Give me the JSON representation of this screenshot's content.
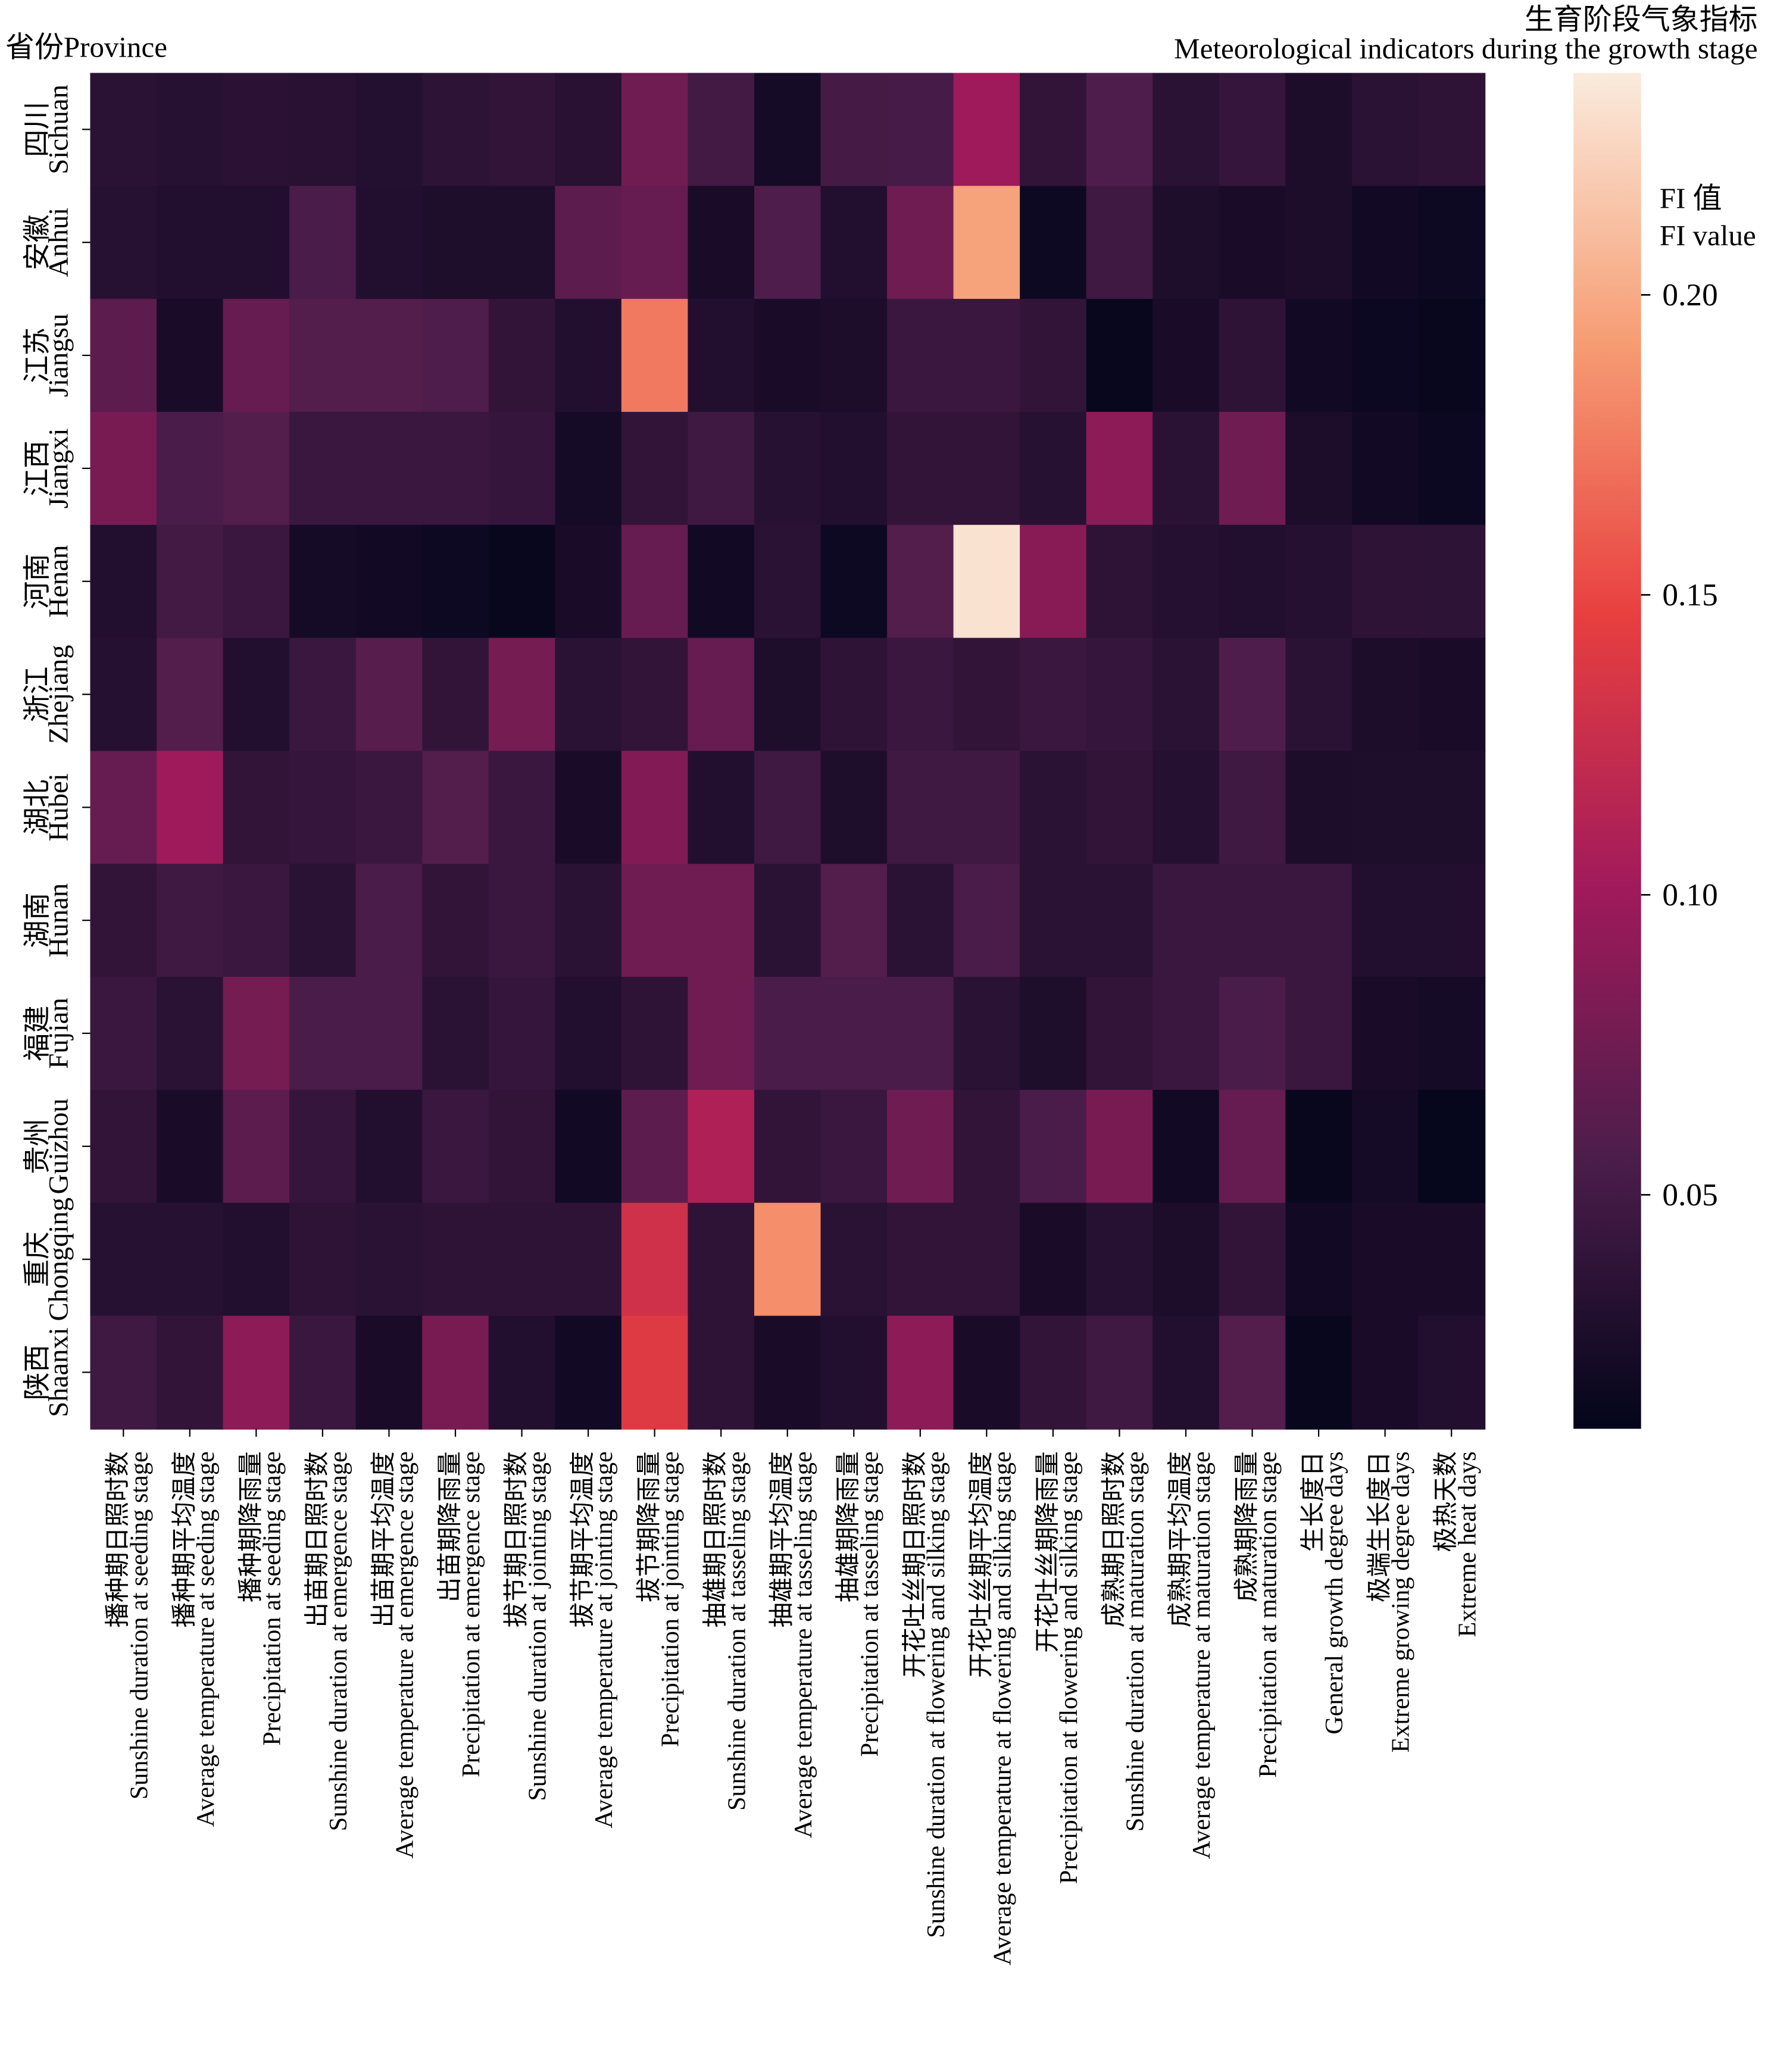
{
  "chart_data": {
    "type": "heatmap",
    "y_axis_label": "省份Province",
    "x_axis_label_zh": "生育阶段气象指标",
    "x_axis_label_en": "Meteorological indicators during the growth stage",
    "colorbar_label_zh": "FI 值",
    "colorbar_label_en": "FI value",
    "colormap": "rocket",
    "clim": [
      0.011,
      0.237
    ],
    "colorbar_ticks": [
      0.05,
      {
        "value": 0.1,
        "label": "0.10"
      },
      0.15,
      {
        "value": 0.2,
        "label": "0.20"
      }
    ],
    "rows_zh": [
      "四川",
      "安徽",
      "江苏",
      "江西",
      "河南",
      "浙江",
      "湖北",
      "湖南",
      "福建",
      "贵州",
      "重庆",
      "陕西"
    ],
    "rows": [
      "Sichuan",
      "Anhui",
      "Jiangsu",
      "Jiangxi",
      "Henan",
      "Zhejiang",
      "Hubei",
      "Hunan",
      "Fujian",
      "Guizhou",
      "Chongqing",
      "Shaanxi"
    ],
    "categories_zh": [
      "播种期日照时数",
      "播种期平均温度",
      "播种期降雨量",
      "出苗期日照时数",
      "出苗期平均温度",
      "出苗期降雨量",
      "拔节期日照时数",
      "拔节期平均温度",
      "拔节期降雨量",
      "抽雄期日照时数",
      "抽雄期平均温度",
      "抽雄期降雨量",
      "开花吐丝期日照时数",
      "开花吐丝期平均温度",
      "开花吐丝期降雨量",
      "成熟期日照时数",
      "成熟期平均温度",
      "成熟期降雨量",
      "生长度日",
      "极端生长度日",
      "极热天数"
    ],
    "categories": [
      "Sunshine duration at seeding stage",
      "Average temperature at seeding stage",
      "Precipitation at seeding stage",
      "Sunshine duration at emergence stage",
      "Average temperature at emergence stage",
      "Precipitation at emergence stage",
      "Sunshine duration at jointing stage",
      "Average temperature at jointing stage",
      "Precipitation at jointing stage",
      "Sunshine duration at tasseling stage",
      "Average temperature at tasseling stage",
      "Precipitation at tasseling stage",
      "Sunshine duration at flowering and silking stage",
      "Average temperature at flowering and silking stage",
      "Precipitation at flowering and silking stage",
      "Sunshine duration at maturation stage",
      "Average temperature at maturation stage",
      "Precipitation at maturation stage",
      "General growth degree days",
      "Extreme growing degree days",
      "Extreme heat days"
    ],
    "values": [
      [
        0.035,
        0.033,
        0.036,
        0.034,
        0.031,
        0.037,
        0.04,
        0.034,
        0.075,
        0.05,
        0.022,
        0.052,
        0.053,
        0.1,
        0.04,
        0.058,
        0.035,
        0.042,
        0.027,
        0.035,
        0.038
      ],
      [
        0.033,
        0.03,
        0.03,
        0.055,
        0.03,
        0.028,
        0.028,
        0.065,
        0.07,
        0.025,
        0.058,
        0.03,
        0.075,
        0.195,
        0.018,
        0.048,
        0.028,
        0.025,
        0.027,
        0.02,
        0.018
      ],
      [
        0.065,
        0.025,
        0.07,
        0.06,
        0.06,
        0.058,
        0.04,
        0.03,
        0.175,
        0.03,
        0.025,
        0.027,
        0.045,
        0.045,
        0.04,
        0.015,
        0.025,
        0.038,
        0.02,
        0.017,
        0.015
      ],
      [
        0.08,
        0.055,
        0.06,
        0.045,
        0.045,
        0.045,
        0.042,
        0.022,
        0.04,
        0.048,
        0.033,
        0.03,
        0.04,
        0.04,
        0.033,
        0.09,
        0.035,
        0.075,
        0.027,
        0.02,
        0.017
      ],
      [
        0.03,
        0.05,
        0.045,
        0.022,
        0.02,
        0.018,
        0.015,
        0.025,
        0.07,
        0.02,
        0.035,
        0.018,
        0.06,
        0.232,
        0.088,
        0.038,
        0.032,
        0.03,
        0.032,
        0.038,
        0.037
      ],
      [
        0.032,
        0.06,
        0.03,
        0.045,
        0.062,
        0.04,
        0.078,
        0.035,
        0.04,
        0.07,
        0.028,
        0.038,
        0.045,
        0.04,
        0.045,
        0.042,
        0.035,
        0.058,
        0.035,
        0.027,
        0.025
      ],
      [
        0.07,
        0.1,
        0.04,
        0.042,
        0.045,
        0.06,
        0.045,
        0.025,
        0.085,
        0.03,
        0.048,
        0.028,
        0.048,
        0.048,
        0.035,
        0.04,
        0.032,
        0.048,
        0.027,
        0.028,
        0.028
      ],
      [
        0.04,
        0.048,
        0.045,
        0.035,
        0.055,
        0.04,
        0.045,
        0.035,
        0.075,
        0.075,
        0.035,
        0.06,
        0.035,
        0.055,
        0.035,
        0.035,
        0.045,
        0.045,
        0.045,
        0.03,
        0.03
      ],
      [
        0.045,
        0.035,
        0.078,
        0.055,
        0.055,
        0.035,
        0.042,
        0.03,
        0.038,
        0.075,
        0.055,
        0.055,
        0.055,
        0.035,
        0.028,
        0.04,
        0.045,
        0.055,
        0.045,
        0.025,
        0.022
      ],
      [
        0.04,
        0.025,
        0.065,
        0.042,
        0.03,
        0.045,
        0.04,
        0.02,
        0.065,
        0.11,
        0.04,
        0.045,
        0.075,
        0.04,
        0.055,
        0.08,
        0.02,
        0.07,
        0.015,
        0.022,
        0.013
      ],
      [
        0.033,
        0.033,
        0.03,
        0.038,
        0.035,
        0.038,
        0.038,
        0.038,
        0.13,
        0.038,
        0.185,
        0.035,
        0.04,
        0.04,
        0.025,
        0.033,
        0.027,
        0.04,
        0.02,
        0.025,
        0.025
      ],
      [
        0.048,
        0.04,
        0.09,
        0.045,
        0.025,
        0.08,
        0.03,
        0.02,
        0.14,
        0.038,
        0.025,
        0.03,
        0.09,
        0.025,
        0.04,
        0.048,
        0.03,
        0.06,
        0.015,
        0.025,
        0.03
      ]
    ]
  }
}
